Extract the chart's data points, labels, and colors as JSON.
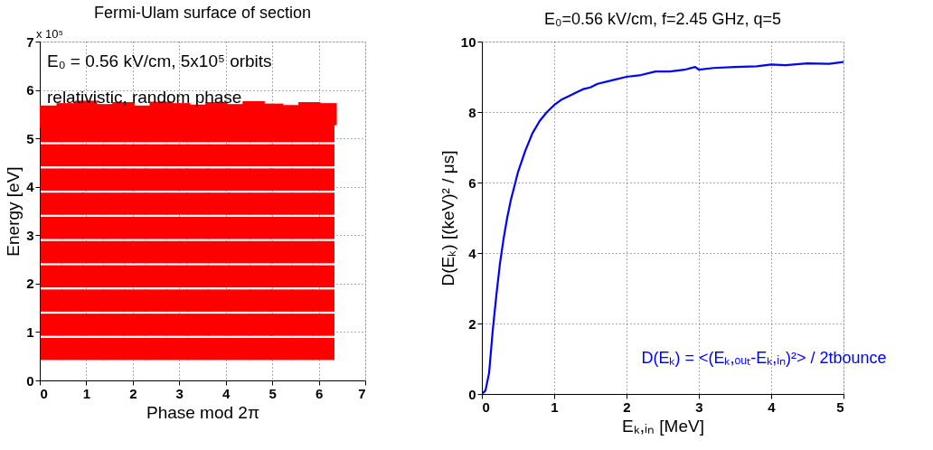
{
  "chart_data": [
    {
      "type": "scatter",
      "title": "Fermi-Ulam surface of section",
      "xlabel": "Phase mod 2π",
      "ylabel": "Energy [eV]",
      "annotations": [
        "x 10⁵",
        "E₀ = 0.56 kV/cm,   5x10⁵ orbits",
        "relativistic,   random phase"
      ],
      "xlim": [
        0,
        7
      ],
      "ylim": [
        0,
        7
      ],
      "xticks": [
        0,
        1,
        2,
        3,
        4,
        5,
        6,
        7
      ],
      "yticks": [
        0,
        1,
        2,
        3,
        4,
        5,
        6,
        7
      ],
      "grid": true,
      "marker": "square",
      "x": [
        0.25,
        0.7,
        1.15,
        1.6,
        2.05,
        2.5,
        2.95,
        3.4,
        3.85,
        4.3,
        4.75,
        5.2,
        5.65,
        6.1
      ],
      "series": [
        {
          "color": "#ff0000",
          "values": [
            0.65,
            0.65,
            0.65,
            0.65,
            0.65,
            0.65,
            0.65,
            0.65,
            0.65,
            0.65,
            0.65,
            0.65,
            0.65,
            0.65
          ]
        },
        {
          "color": "#ff0000",
          "values": [
            1.15,
            1.15,
            1.15,
            1.15,
            1.15,
            1.15,
            1.15,
            1.15,
            1.15,
            1.15,
            1.15,
            1.15,
            1.15,
            1.15
          ]
        },
        {
          "color": "#ff0000",
          "values": [
            1.65,
            1.65,
            1.65,
            1.65,
            1.65,
            1.65,
            1.65,
            1.65,
            1.65,
            1.65,
            1.65,
            1.65,
            1.65,
            1.65
          ]
        },
        {
          "color": "#ff0000",
          "values": [
            2.15,
            2.15,
            2.15,
            2.15,
            2.15,
            2.15,
            2.15,
            2.15,
            2.15,
            2.15,
            2.15,
            2.15,
            2.15,
            2.15
          ]
        },
        {
          "color": "#ff0000",
          "values": [
            2.65,
            2.65,
            2.65,
            2.65,
            2.65,
            2.65,
            2.65,
            2.65,
            2.65,
            2.65,
            2.65,
            2.65,
            2.65,
            2.65
          ]
        },
        {
          "color": "#ff0000",
          "values": [
            3.15,
            3.15,
            3.15,
            3.15,
            3.15,
            3.15,
            3.15,
            3.15,
            3.15,
            3.15,
            3.15,
            3.15,
            3.15,
            3.15
          ]
        },
        {
          "color": "#ff0000",
          "values": [
            3.65,
            3.65,
            3.65,
            3.65,
            3.65,
            3.65,
            3.65,
            3.65,
            3.65,
            3.65,
            3.65,
            3.65,
            3.65,
            3.65
          ]
        },
        {
          "color": "#ff0000",
          "values": [
            4.15,
            4.15,
            4.15,
            4.15,
            4.15,
            4.15,
            4.15,
            4.15,
            4.15,
            4.15,
            4.15,
            4.15,
            4.15,
            4.15
          ]
        },
        {
          "color": "#ff0000",
          "values": [
            4.65,
            4.65,
            4.65,
            4.65,
            4.65,
            4.65,
            4.65,
            4.65,
            4.65,
            4.65,
            4.65,
            4.65,
            4.65,
            4.65
          ]
        },
        {
          "color": "#ff0000",
          "values": [
            5.15,
            5.15,
            5.15,
            5.15,
            5.15,
            5.15,
            5.15,
            5.15,
            5.15,
            5.15,
            5.15,
            5.15,
            5.15,
            5.15
          ]
        },
        {
          "color": "#ff0000",
          "x": [
            0.2,
            0.6,
            1.0,
            1.4,
            1.8,
            2.2,
            2.6,
            3.0,
            3.4,
            3.8,
            4.2,
            4.6,
            5.0,
            5.4,
            5.8,
            6.15
          ],
          "values": [
            5.45,
            5.5,
            5.55,
            5.48,
            5.52,
            5.45,
            5.53,
            5.5,
            5.47,
            5.52,
            5.48,
            5.54,
            5.49,
            5.46,
            5.52,
            5.5
          ]
        }
      ]
    },
    {
      "type": "line",
      "title": "E₀=0.56 kV/cm,  f=2.45 GHz,  q=5",
      "xlabel": "Eₖ,ᵢₙ [MeV]",
      "ylabel": "D(Eₖ) [(keV)² / μs]",
      "annotations": [
        "D(Eₖ) = <(Eₖ,ₒᵤₜ-Eₖ,ᵢₙ)²> / 2tbounce"
      ],
      "xlim": [
        0,
        5
      ],
      "ylim": [
        0,
        10
      ],
      "xticks": [
        0,
        1,
        2,
        3,
        4,
        5
      ],
      "yticks": [
        0,
        2,
        4,
        6,
        8,
        10
      ],
      "grid": true,
      "x": [
        0,
        0.05,
        0.1,
        0.15,
        0.2,
        0.25,
        0.3,
        0.35,
        0.4,
        0.45,
        0.5,
        0.6,
        0.7,
        0.8,
        0.9,
        1.0,
        1.1,
        1.2,
        1.3,
        1.4,
        1.5,
        1.6,
        1.8,
        2.0,
        2.2,
        2.4,
        2.6,
        2.8,
        2.95,
        3.0,
        3.2,
        3.5,
        3.8,
        4.0,
        4.2,
        4.5,
        4.8,
        5.0
      ],
      "series": [
        {
          "color": "#0000ff",
          "values": [
            0,
            0.1,
            0.6,
            1.8,
            2.8,
            3.7,
            4.4,
            5.0,
            5.5,
            5.9,
            6.3,
            6.9,
            7.4,
            7.75,
            8.0,
            8.2,
            8.35,
            8.45,
            8.55,
            8.65,
            8.7,
            8.8,
            8.9,
            9.0,
            9.05,
            9.15,
            9.15,
            9.2,
            9.28,
            9.2,
            9.25,
            9.28,
            9.3,
            9.35,
            9.33,
            9.38,
            9.37,
            9.42
          ]
        }
      ]
    }
  ]
}
